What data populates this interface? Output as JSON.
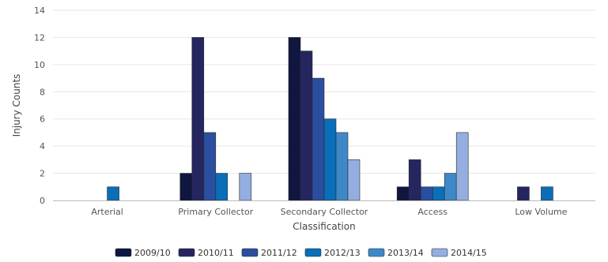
{
  "chart_data": {
    "type": "bar",
    "title": "",
    "xlabel": "Classification",
    "ylabel": "Injury Counts",
    "categories": [
      "Arterial",
      "Primary Collector",
      "Secondary Collector",
      "Access",
      "Low Volume"
    ],
    "ylim": [
      0,
      14
    ],
    "yticks": [
      0,
      2,
      4,
      6,
      8,
      10,
      12,
      14
    ],
    "grid": true,
    "legend_position": "bottom",
    "series": [
      {
        "name": "2009/10",
        "color": "#0f1640",
        "values": [
          0,
          2,
          12,
          1,
          0
        ]
      },
      {
        "name": "2010/11",
        "color": "#252660",
        "values": [
          0,
          12,
          11,
          3,
          1
        ]
      },
      {
        "name": "2011/12",
        "color": "#2a4fa0",
        "values": [
          0,
          5,
          9,
          1,
          0
        ]
      },
      {
        "name": "2012/13",
        "color": "#0a6eb8",
        "values": [
          1,
          2,
          6,
          1,
          1
        ]
      },
      {
        "name": "2013/14",
        "color": "#3f88c8",
        "values": [
          0,
          0,
          5,
          2,
          0
        ]
      },
      {
        "name": "2014/15",
        "color": "#94aee0",
        "values": [
          0,
          2,
          3,
          5,
          0
        ]
      }
    ]
  }
}
